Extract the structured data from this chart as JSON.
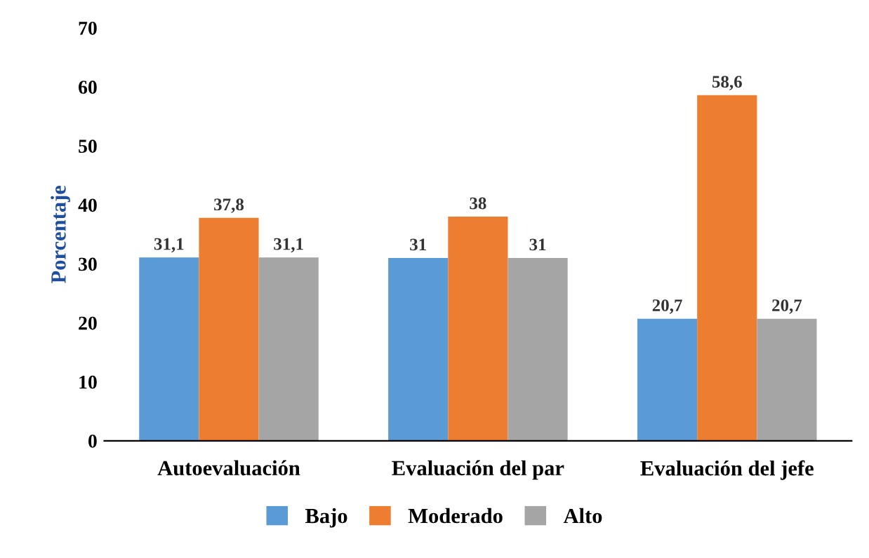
{
  "chart_data": {
    "type": "bar",
    "ylabel": "Porcentaje",
    "categories": [
      "Autoevaluación",
      "Evaluación del par",
      "Evaluación del jefe"
    ],
    "series": [
      {
        "name": "Bajo",
        "color": "#5b9bd5",
        "values": [
          31.1,
          31,
          20.7
        ],
        "value_labels": [
          "31,1",
          "31",
          "20,7"
        ]
      },
      {
        "name": "Moderado",
        "color": "#ed7d31",
        "values": [
          37.8,
          38,
          58.6
        ],
        "value_labels": [
          "37,8",
          "38",
          "58,6"
        ]
      },
      {
        "name": "Alto",
        "color": "#a5a5a5",
        "values": [
          31.1,
          31,
          20.7
        ],
        "value_labels": [
          "31,1",
          "31",
          "20,7"
        ]
      }
    ],
    "ylim": [
      0,
      70
    ],
    "yticks": [
      0,
      10,
      20,
      30,
      40,
      50,
      60,
      70
    ],
    "grid": false,
    "legend": "bottom"
  }
}
